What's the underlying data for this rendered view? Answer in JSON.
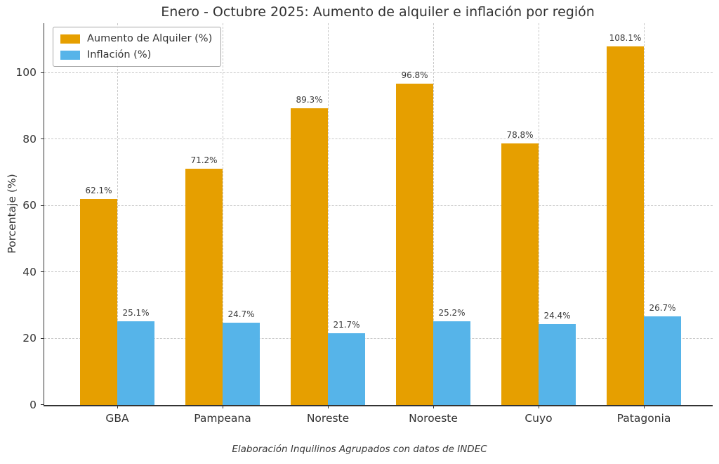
{
  "chart_data": {
    "type": "bar",
    "title": "Enero - Octubre 2025: Aumento de alquiler e inflación por región",
    "categories": [
      "GBA",
      "Pampeana",
      "Noreste",
      "Noroeste",
      "Cuyo",
      "Patagonia"
    ],
    "series": [
      {
        "name": "Aumento de Alquiler (%)",
        "color": "#E69F00",
        "values": [
          62.1,
          71.2,
          89.3,
          96.8,
          78.8,
          108.1
        ]
      },
      {
        "name": "Inflación (%)",
        "color": "#56B4E9",
        "values": [
          25.1,
          24.7,
          21.7,
          25.2,
          24.4,
          26.7
        ]
      }
    ],
    "xlabel": "",
    "ylabel": "Porcentaje (%)",
    "ylim": [
      0,
      115
    ],
    "yticks": [
      0,
      20,
      40,
      60,
      80,
      100
    ],
    "grid": true,
    "grid_style": "dashed",
    "legend_position": "upper left",
    "value_label_format": "{value}%",
    "background": "#ffffff",
    "source_note": "Elaboración Inquilinos Agrupados con datos de INDEC"
  }
}
